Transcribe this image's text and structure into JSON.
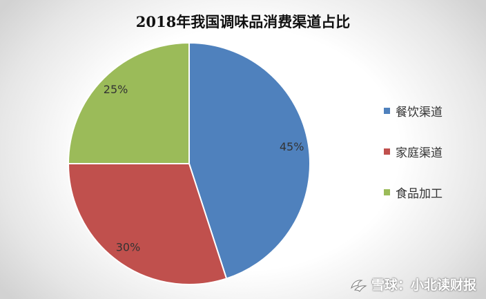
{
  "chart_data": {
    "type": "pie",
    "title": "2018年我国调味品消费渠道占比",
    "categories": [
      "餐饮渠道",
      "家庭渠道",
      "食品加工"
    ],
    "values": [
      45,
      30,
      25
    ],
    "labels": [
      "45%",
      "30%",
      "25%"
    ],
    "colors": [
      "#4F81BD",
      "#C0504D",
      "#9BBB59"
    ],
    "legend_position": "right"
  },
  "watermark": {
    "text": "雪球：小北读财报",
    "icon": "snowball-logo-icon"
  }
}
